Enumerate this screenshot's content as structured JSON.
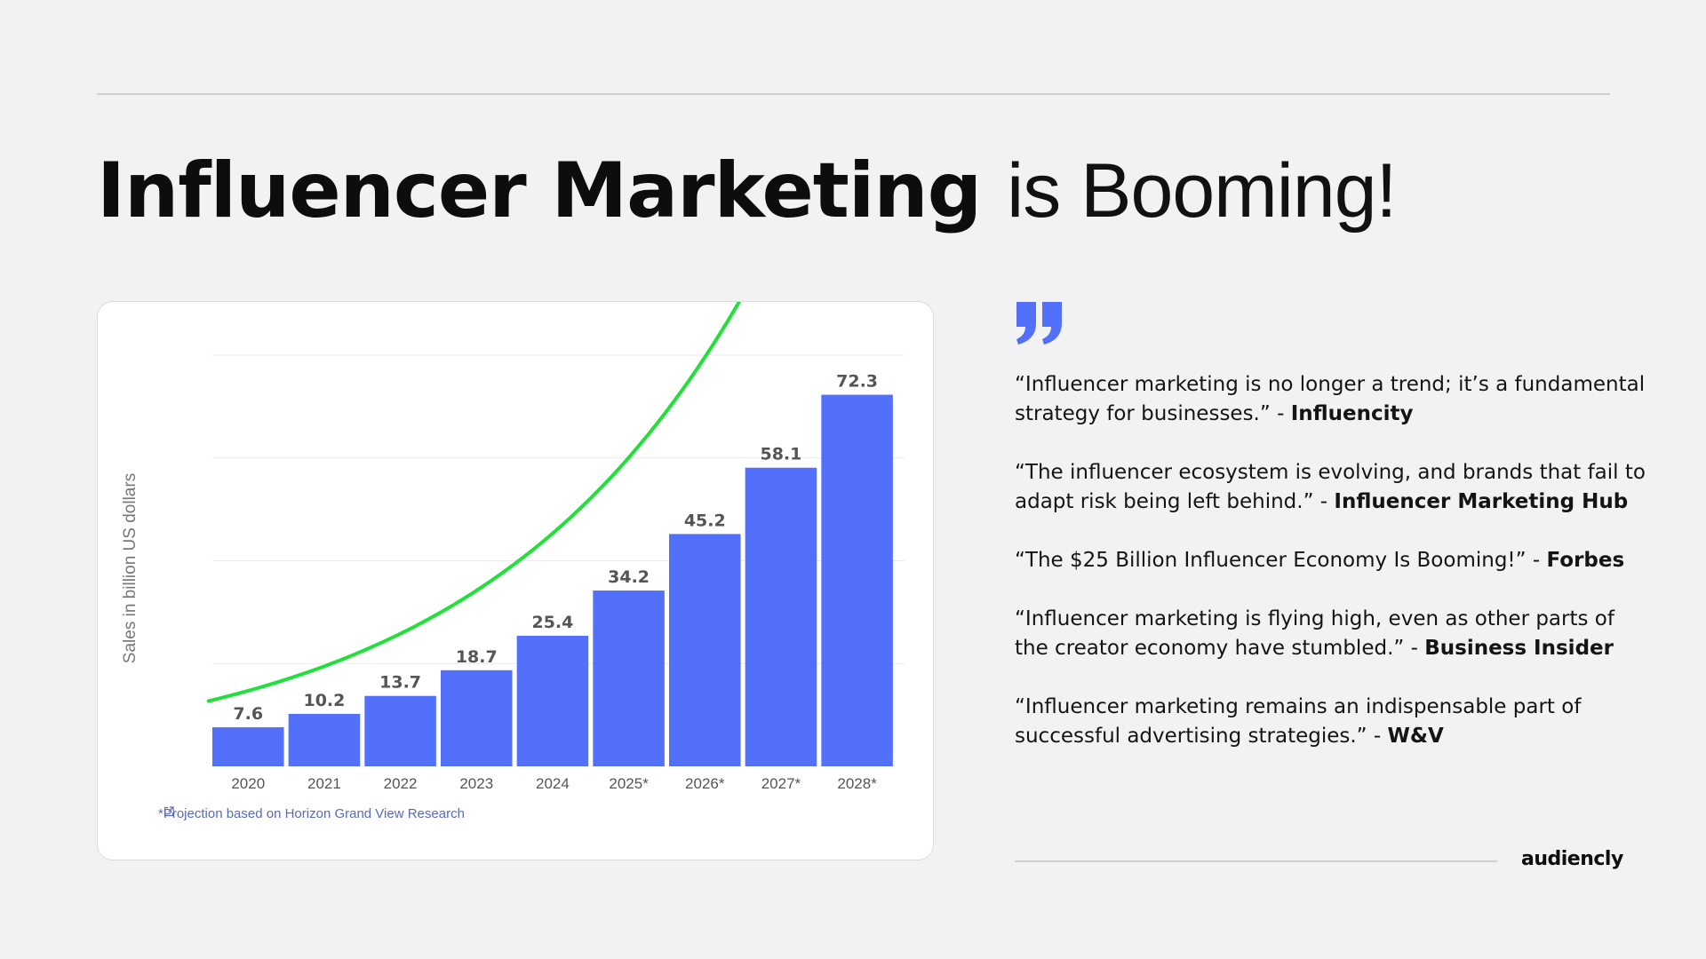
{
  "headline": {
    "bold_part": "Influencer Marketing",
    "light_part": "is Booming!"
  },
  "chart_data": {
    "type": "bar",
    "categories": [
      "2020",
      "2021",
      "2022",
      "2023",
      "2024",
      "2025*",
      "2026*",
      "2027*",
      "2028*"
    ],
    "values": [
      7.6,
      10.2,
      13.7,
      18.7,
      25.4,
      34.2,
      45.2,
      58.1,
      72.3
    ],
    "value_labels": [
      "7.6",
      "10.2",
      "13.7",
      "18.7",
      "25.4",
      "34.2",
      "45.2",
      "58.1",
      "72.3"
    ],
    "ylabel": "Sales in billion US dollars",
    "xlabel": "",
    "ylim": [
      0,
      80
    ],
    "grid": true,
    "bar_color": "#5370fb",
    "trend_line": {
      "color": "#22e03a",
      "description_visible": false
    },
    "footnote": "*Projection based on Horizon Grand View Research"
  },
  "quotes": [
    {
      "text": "“Influencer marketing is no longer a trend; it’s a fundamental strategy for businesses.” - ",
      "source": "Influencity"
    },
    {
      "text": "“The influencer ecosystem is evolving, and brands that fail to adapt risk being left behind.” - ",
      "source": "Influencer Marketing Hub"
    },
    {
      "text": "“The $25 Billion Influencer Economy Is Booming!” - ",
      "source": "Forbes"
    },
    {
      "text": "“Influencer marketing is flying high, even as other parts of the creator economy have stumbled.” - ",
      "source": "Business Insider"
    },
    {
      "text": "“Influencer marketing remains an indispensable part of successful advertising strategies.” - ",
      "source": "W&V"
    }
  ],
  "brand": "audiencly",
  "colors": {
    "background": "#f2f2f2",
    "accent": "#5370fb",
    "trend": "#22e03a",
    "text": "#0d0d0d"
  },
  "icons": {
    "quote_mark": "quote-mark-icon",
    "external_link": "external-link-icon"
  }
}
